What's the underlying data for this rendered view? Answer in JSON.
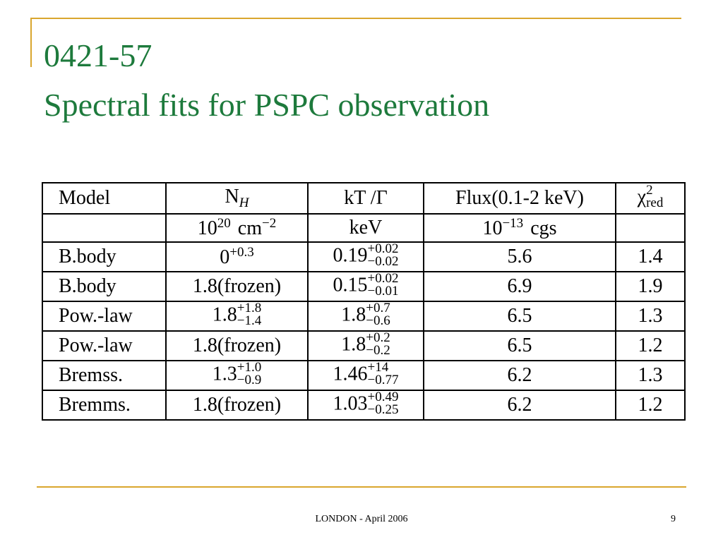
{
  "header": {
    "title_lines": [
      "0421-57",
      "Spectral fits for PSPC observation"
    ]
  },
  "table": {
    "header": [
      "Model",
      {
        "text": "N",
        "sub": "H"
      },
      "kT /Γ",
      "Flux(0.1-2 keV)",
      {
        "text": "χ",
        "sup": "2",
        "sub": "red"
      }
    ],
    "units": [
      null,
      {
        "text": "10",
        "sup": "20",
        "tail": "cm",
        "tail_sup": "−2"
      },
      "keV",
      {
        "text": "10",
        "sup": "−13",
        "tail": "cgs"
      },
      null
    ],
    "rows": [
      [
        "B.body",
        {
          "text": "0",
          "sup": "+0.3"
        },
        {
          "text": "0.19",
          "sup": "+0.02",
          "sub": "−0.02"
        },
        "5.6",
        "1.4"
      ],
      [
        "B.body",
        "1.8(frozen)",
        {
          "text": "0.15",
          "sup": "+0.02",
          "sub": "−0.01"
        },
        "6.9",
        "1.9"
      ],
      [
        "Pow.-law",
        {
          "text": "1.8",
          "sup": "+1.8",
          "sub": "−1.4"
        },
        {
          "text": "1.8",
          "sup": "+0.7",
          "sub": "−0.6"
        },
        "6.5",
        "1.3"
      ],
      [
        "Pow.-law",
        "1.8(frozen)",
        {
          "text": "1.8",
          "sup": "+0.2",
          "sub": "−0.2"
        },
        "6.5",
        "1.2"
      ],
      [
        "Bremss.",
        {
          "text": "1.3",
          "sup": "+1.0",
          "sub": "−0.9"
        },
        {
          "text": "1.46",
          "sup": "+14",
          "sub": "−0.77"
        },
        "6.2",
        "1.3"
      ],
      [
        "Bremms.",
        "1.8(frozen)",
        {
          "text": "1.03",
          "sup": "+0.49",
          "sub": "−0.25"
        },
        "6.2",
        "1.2"
      ]
    ]
  },
  "footer": {
    "text": "LONDON - April 2006",
    "page": "9"
  }
}
